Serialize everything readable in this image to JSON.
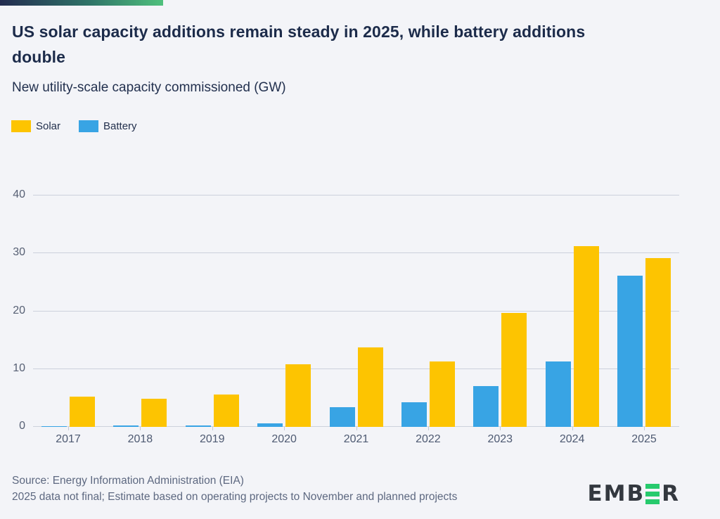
{
  "page": {
    "background": "#f3f4f8"
  },
  "brand_bar": {
    "gradient_from": "#232c50",
    "gradient_mid": "#2f7468",
    "gradient_to": "#4fc07d"
  },
  "header": {
    "title": "US solar capacity additions remain steady in 2025, while battery additions double",
    "subtitle": "New utility-scale capacity commissioned (GW)"
  },
  "legend": {
    "items": [
      {
        "label": "Solar",
        "color": "#fdc401"
      },
      {
        "label": "Battery",
        "color": "#38a4e4"
      }
    ]
  },
  "chart_data": {
    "type": "bar",
    "title": "New utility-scale capacity commissioned (GW)",
    "categories": [
      "2017",
      "2018",
      "2019",
      "2020",
      "2021",
      "2022",
      "2023",
      "2024",
      "2025"
    ],
    "series": [
      {
        "name": "Battery",
        "color": "#38a4e4",
        "values": [
          0.1,
          0.2,
          0.2,
          0.6,
          3.4,
          4.3,
          7.0,
          11.3,
          26.2
        ]
      },
      {
        "name": "Solar",
        "color": "#fdc401",
        "values": [
          5.2,
          4.9,
          5.6,
          10.8,
          13.8,
          11.3,
          19.7,
          31.2,
          29.2
        ]
      }
    ],
    "ylim": [
      0,
      40
    ],
    "yticks": [
      0,
      10,
      20,
      30,
      40
    ],
    "xlabel": "",
    "ylabel": "",
    "grid": true,
    "legend_position": "top-left",
    "bar_order_note": "Battery bar drawn left of Solar bar in each year group"
  },
  "footer": {
    "source": "Source: Energy Information Administration (EIA)",
    "note": "2025 data not final; Estimate based on operating projects to November and planned projects"
  },
  "logo": {
    "name": "EMBER",
    "text_before_e": "EMB",
    "text_after_e": "R",
    "green": "#27ca6d",
    "dark": "#33383f"
  }
}
